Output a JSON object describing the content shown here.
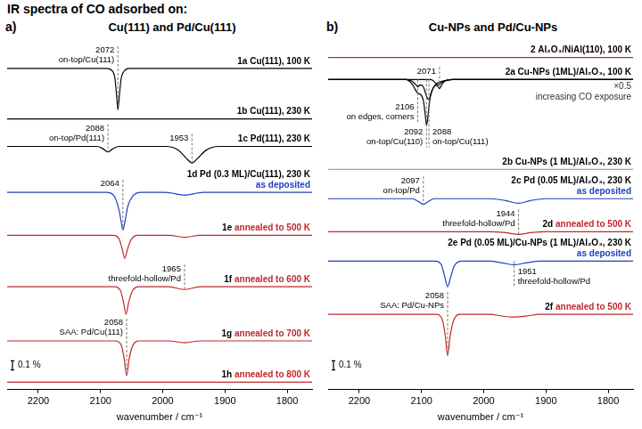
{
  "title": "IR spectra of CO adsorbed on:",
  "chart_data": [
    {
      "type": "line",
      "panel": "a)",
      "title": "Cu(111) and Pd/Cu(111)",
      "x_label": "wavenumber / cm⁻¹",
      "xlim": [
        2250,
        1760
      ],
      "xticks": [
        2200,
        2100,
        2000,
        1900,
        1800
      ],
      "ylim": [
        -3.8,
        0
      ],
      "tick_labels": "x",
      "grid": false,
      "scale_bar": {
        "value": 0.1,
        "label": "0.1 %"
      },
      "series": [
        {
          "name": "1a",
          "label": "Cu(111), 100 K",
          "color": "#000000",
          "x": [
            2250,
            2090,
            2082,
            2077,
            2074,
            2072,
            2070,
            2067,
            2062,
            2054,
            1760
          ],
          "values": [
            -0.3,
            -0.3,
            -0.32,
            -0.4,
            -0.6,
            -0.75,
            -0.62,
            -0.42,
            -0.33,
            -0.3,
            -0.3
          ],
          "peaks": [
            {
              "x": 2072,
              "label": "on-top/Cu(111)"
            }
          ]
        },
        {
          "name": "1b",
          "label": "Cu(111), 230 K",
          "color": "#000000",
          "x": [
            2250,
            1760
          ],
          "values": [
            -0.85,
            -0.85
          ]
        },
        {
          "name": "1c",
          "label": "Pd(111), 230 K",
          "color": "#000000",
          "x": [
            2250,
            2105,
            2095,
            2088,
            2081,
            2070,
            1995,
            1975,
            1962,
            1953,
            1944,
            1930,
            1910,
            1760
          ],
          "values": [
            -1.15,
            -1.15,
            -1.18,
            -1.21,
            -1.18,
            -1.15,
            -1.15,
            -1.19,
            -1.28,
            -1.33,
            -1.28,
            -1.19,
            -1.15,
            -1.15
          ],
          "peaks": [
            {
              "x": 2088,
              "label": "on-top/Pd(111)"
            },
            {
              "x": 1953
            }
          ]
        },
        {
          "name": "1d",
          "label": "Pd (0.3 ML)/Cu(111), 230 K",
          "condition": "as deposited",
          "color": "#1f3fbf",
          "x": [
            2250,
            2090,
            2078,
            2070,
            2066,
            2064,
            2061,
            2056,
            2048,
            2035,
            1995,
            1965,
            1935,
            1760
          ],
          "values": [
            -1.65,
            -1.65,
            -1.69,
            -1.85,
            -2.0,
            -2.06,
            -1.98,
            -1.8,
            -1.69,
            -1.65,
            -1.65,
            -1.68,
            -1.65,
            -1.65
          ],
          "peaks": [
            {
              "x": 2064
            }
          ]
        },
        {
          "name": "1e",
          "condition": "annealed to 500 K",
          "color": "#c0282d",
          "x": [
            2250,
            2080,
            2070,
            2065,
            2061,
            2057,
            2051,
            2040,
            1990,
            1965,
            1940,
            1760
          ],
          "values": [
            -2.12,
            -2.12,
            -2.16,
            -2.27,
            -2.37,
            -2.28,
            -2.17,
            -2.12,
            -2.12,
            -2.14,
            -2.12,
            -2.12
          ]
        },
        {
          "name": "1f",
          "condition": "annealed to 600 K",
          "color": "#c0282d",
          "x": [
            2250,
            2078,
            2068,
            2063,
            2059,
            2055,
            2049,
            2038,
            1990,
            1965,
            1940,
            1760
          ],
          "values": [
            -2.68,
            -2.68,
            -2.72,
            -2.85,
            -2.98,
            -2.86,
            -2.73,
            -2.68,
            -2.68,
            -2.71,
            -2.68,
            -2.68
          ],
          "peaks": [
            {
              "x": 1965,
              "label": "threefold-hollow/Pd"
            }
          ]
        },
        {
          "name": "1g",
          "condition": "annealed to 700 K",
          "color": "#c0282d",
          "x": [
            2250,
            2077,
            2067,
            2062,
            2058,
            2054,
            2048,
            2037,
            1990,
            1965,
            1940,
            1760
          ],
          "values": [
            -3.27,
            -3.27,
            -3.31,
            -3.46,
            -3.65,
            -3.47,
            -3.32,
            -3.27,
            -3.27,
            -3.29,
            -3.27,
            -3.27
          ],
          "peaks": [
            {
              "x": 2058,
              "label": "SAA: Pd/Cu(111)"
            }
          ]
        },
        {
          "name": "1h",
          "condition": "annealed to 800 K",
          "color": "#c0282d",
          "x": [
            2250,
            1760
          ],
          "values": [
            -3.72,
            -3.72
          ]
        }
      ]
    },
    {
      "type": "line",
      "panel": "b)",
      "title": "Cu-NPs and Pd/Cu-NPs",
      "x_label": "wavenumber / cm⁻¹",
      "xlim": [
        2250,
        1760
      ],
      "xticks": [
        2200,
        2100,
        2000,
        1900,
        1800
      ],
      "ylim": [
        -3.8,
        0
      ],
      "tick_labels": "x",
      "grid": false,
      "scale_bar": {
        "value": 0.1,
        "label": "0.1 %"
      },
      "series": [
        {
          "name": "2",
          "label": "Al₂O₃/NiAl(110), 100 K",
          "color": "#c0282d",
          "x": [
            2250,
            1760
          ],
          "values": [
            -0.18,
            -0.18
          ]
        },
        {
          "name": "2a",
          "label": "Cu-NPs (1ML)/Al₂O₃, 100 K",
          "color": "#000000",
          "notes": [
            "×0.5",
            "increasing CO exposure"
          ],
          "x": [
            2250,
            2125,
            2115,
            2110,
            2106,
            2102,
            2097,
            2094,
            2092,
            2090,
            2088,
            2085,
            2080,
            2075,
            2071,
            2067,
            2060,
            2050,
            1760
          ],
          "curves": [
            [
              -0.42,
              -0.42,
              -0.42,
              -0.42,
              -0.42,
              -0.42,
              -0.42,
              -0.42,
              -0.42,
              -0.42,
              -0.42,
              -0.42,
              -0.44,
              -0.48,
              -0.52,
              -0.47,
              -0.43,
              -0.42,
              -0.42
            ],
            [
              -0.42,
              -0.42,
              -0.44,
              -0.47,
              -0.5,
              -0.48,
              -0.5,
              -0.56,
              -0.6,
              -0.63,
              -0.64,
              -0.58,
              -0.5,
              -0.48,
              -0.47,
              -0.45,
              -0.43,
              -0.42,
              -0.42
            ],
            [
              -0.42,
              -0.42,
              -0.47,
              -0.53,
              -0.57,
              -0.58,
              -0.65,
              -0.8,
              -0.92,
              -0.85,
              -0.72,
              -0.58,
              -0.5,
              -0.46,
              -0.45,
              -0.44,
              -0.43,
              -0.42,
              -0.42
            ]
          ],
          "peaks": [
            {
              "x": 2106,
              "label": "on edges, corners"
            },
            {
              "x": 2092,
              "label": "on-top/Cu(110)"
            },
            {
              "x": 2088,
              "label": "on-top/Cu(111)"
            },
            {
              "x": 2071
            }
          ]
        },
        {
          "name": "2b",
          "label": "Cu-NPs (1 ML)/Al₂O₃, 230 K",
          "color": "#8a8a8a",
          "x": [
            2250,
            1760
          ],
          "values": [
            -1.4,
            -1.4
          ]
        },
        {
          "name": "2c",
          "label": "Pd (0.05 ML)/Al₂O₃, 230 K",
          "condition": "as deposited",
          "color": "#1f3fbf",
          "x": [
            2250,
            2115,
            2105,
            2097,
            2089,
            2080,
            1990,
            1965,
            1944,
            1925,
            1900,
            1760
          ],
          "values": [
            -1.72,
            -1.72,
            -1.75,
            -1.78,
            -1.75,
            -1.72,
            -1.72,
            -1.74,
            -1.77,
            -1.74,
            -1.72,
            -1.72
          ],
          "peaks": [
            {
              "x": 2097,
              "label": "on-top/Pd"
            }
          ]
        },
        {
          "name": "2d",
          "condition": "annealed to 500 K",
          "color": "#c0282d",
          "x": [
            2250,
            1990,
            1965,
            1944,
            1925,
            1900,
            1760
          ],
          "values": [
            -2.08,
            -2.08,
            -2.09,
            -2.11,
            -2.09,
            -2.08,
            -2.08
          ],
          "peaks": [
            {
              "x": 1944,
              "label": "threefold-hollow/Pd"
            }
          ]
        },
        {
          "name": "2e",
          "label": "Pd (0.05 ML)/Cu-NPs (1 ML)/Al₂O₃, 230 K",
          "condition": "as deposited",
          "color": "#1f3fbf",
          "x": [
            2250,
            2078,
            2068,
            2063,
            2058,
            2053,
            2047,
            2036,
            1990,
            1970,
            1951,
            1932,
            1910,
            1760
          ],
          "values": [
            -2.4,
            -2.4,
            -2.44,
            -2.56,
            -2.68,
            -2.57,
            -2.45,
            -2.4,
            -2.4,
            -2.42,
            -2.44,
            -2.42,
            -2.4,
            -2.4
          ],
          "peaks": [
            {
              "x": 1951,
              "label": "threefold-hollow/Pd"
            }
          ]
        },
        {
          "name": "2f",
          "condition": "annealed to 500 K",
          "color": "#c0282d",
          "x": [
            2250,
            2077,
            2067,
            2062,
            2058,
            2054,
            2048,
            2037,
            1990,
            1970,
            1951,
            1932,
            1910,
            1760
          ],
          "values": [
            -2.98,
            -2.98,
            -3.03,
            -3.2,
            -3.43,
            -3.22,
            -3.04,
            -2.98,
            -2.98,
            -3.0,
            -3.01,
            -3.0,
            -2.98,
            -2.98
          ],
          "peaks": [
            {
              "x": 2058,
              "label": "SAA: Pd/Cu-NPs"
            }
          ]
        }
      ]
    }
  ]
}
